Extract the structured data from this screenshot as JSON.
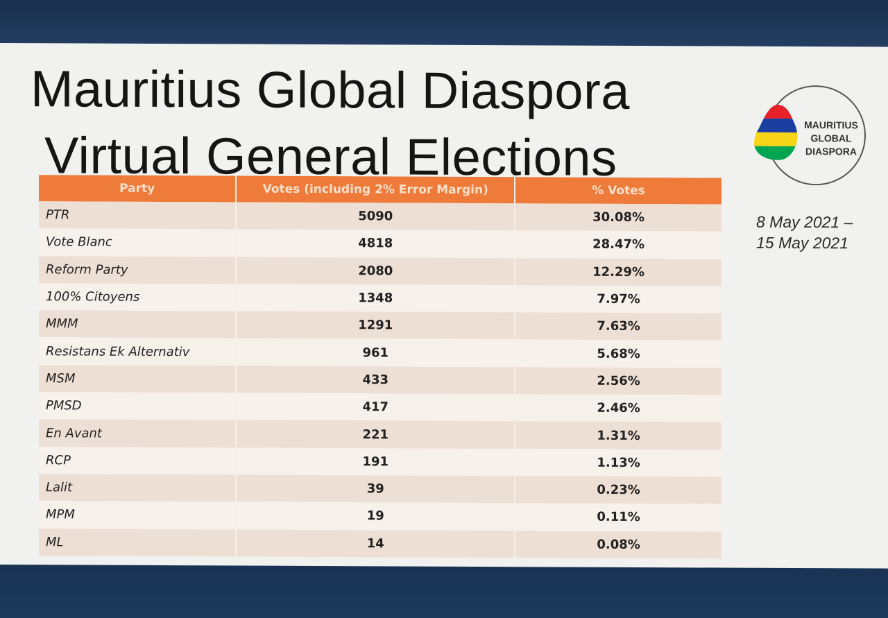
{
  "title_line1": "Mauritius Global Diaspora",
  "title_line2": "Virtual General Elections",
  "logo": {
    "line1": "MAURITIUS",
    "line2": "GLOBAL",
    "line3": "DIASPORA",
    "flag_colors": [
      "#e8202a",
      "#1a3fa0",
      "#f7d417",
      "#00a551"
    ]
  },
  "dates": {
    "line1": "8 May 2021 –",
    "line2": "15 May 2021"
  },
  "table": {
    "headers": [
      "Party",
      "Votes (including 2% Error Margin)",
      "% Votes"
    ],
    "header_color": "#ee7b3a",
    "rows": [
      {
        "party": "PTR",
        "votes": "5090",
        "pct": "30.08%"
      },
      {
        "party": "Vote Blanc",
        "votes": "4818",
        "pct": "28.47%"
      },
      {
        "party": "Reform Party",
        "votes": "2080",
        "pct": "12.29%"
      },
      {
        "party": "100% Citoyens",
        "votes": "1348",
        "pct": "7.97%"
      },
      {
        "party": "MMM",
        "votes": "1291",
        "pct": "7.63%"
      },
      {
        "party": "Resistans Ek Alternativ",
        "votes": "961",
        "pct": "5.68%"
      },
      {
        "party": "MSM",
        "votes": "433",
        "pct": "2.56%"
      },
      {
        "party": "PMSD",
        "votes": "417",
        "pct": "2.46%"
      },
      {
        "party": "En Avant",
        "votes": "221",
        "pct": "1.31%"
      },
      {
        "party": "RCP",
        "votes": "191",
        "pct": "1.13%"
      },
      {
        "party": "Lalit",
        "votes": "39",
        "pct": "0.23%"
      },
      {
        "party": "MPM",
        "votes": "19",
        "pct": "0.11%"
      },
      {
        "party": "ML",
        "votes": "14",
        "pct": "0.08%"
      }
    ]
  }
}
